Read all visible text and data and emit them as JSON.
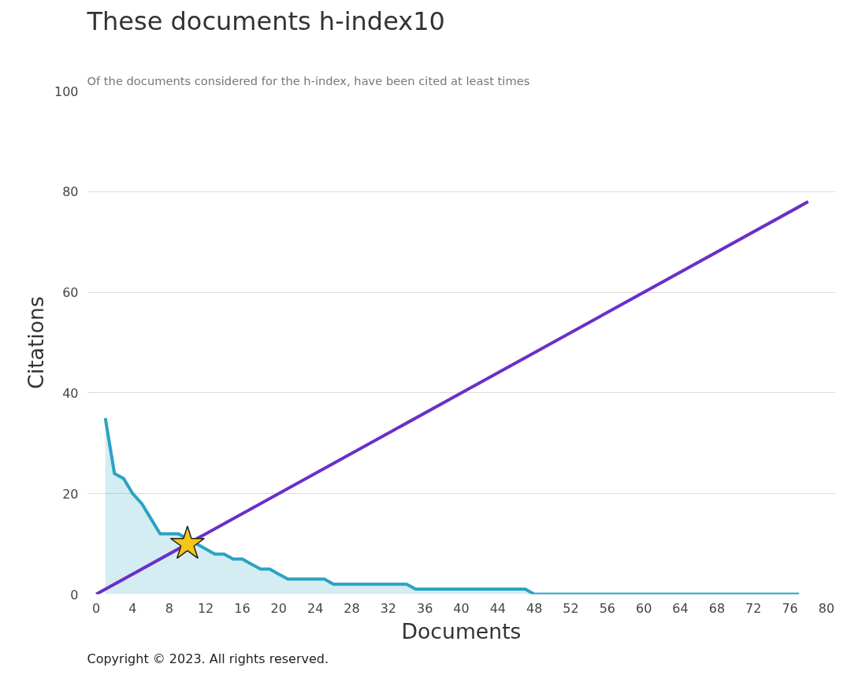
{
  "chart_data": {
    "type": "line",
    "title": "These documents h-index10",
    "subtitle": "Of the documents considered for the h-index, have been cited at least times",
    "xlabel": "Documents",
    "ylabel": "Citations",
    "annotations": [
      "Copyright © 2023. All rights reserved."
    ],
    "series": [
      {
        "type": "area",
        "color": "#2aa3c4",
        "x": [
          1,
          2,
          3,
          4,
          5,
          6,
          7,
          8,
          9,
          10,
          11,
          12,
          13,
          14,
          15,
          16,
          17,
          18,
          19,
          20,
          21,
          22,
          23,
          24,
          25,
          26,
          27,
          28,
          29,
          30,
          31,
          32,
          33,
          34,
          35,
          36,
          37,
          38,
          39,
          40,
          41,
          42,
          43,
          44,
          45,
          46,
          47,
          48,
          49,
          50,
          51,
          52,
          53,
          54,
          55,
          56,
          57,
          58,
          59,
          60,
          61,
          62,
          63,
          64,
          65,
          66,
          67,
          68,
          69,
          70,
          71,
          72,
          73,
          74,
          75,
          76,
          77
        ],
        "values": [
          35,
          24,
          23,
          20,
          18,
          15,
          12,
          12,
          12,
          11,
          10,
          9,
          8,
          8,
          7,
          7,
          6,
          5,
          5,
          4,
          3,
          3,
          3,
          3,
          3,
          2,
          2,
          2,
          2,
          2,
          2,
          2,
          2,
          2,
          1,
          1,
          1,
          1,
          1,
          1,
          1,
          1,
          1,
          1,
          1,
          1,
          1,
          0,
          0,
          0,
          0,
          0,
          0,
          0,
          0,
          0,
          0,
          0,
          0,
          0,
          0,
          0,
          0,
          0,
          0,
          0,
          0,
          0,
          0,
          0,
          0,
          0,
          0,
          0,
          0,
          0,
          0
        ]
      },
      {
        "color": "#6a2fc9",
        "x": [
          0,
          78
        ],
        "values": [
          0,
          78
        ]
      },
      {
        "type": "scatter",
        "color": "#f5c518",
        "marker": "star",
        "x": [
          10
        ],
        "values": [
          10
        ]
      }
    ],
    "xlim": [
      -1,
      81
    ],
    "ylim": [
      0,
      100
    ],
    "xticks": [
      0,
      4,
      8,
      12,
      16,
      20,
      24,
      28,
      32,
      36,
      40,
      44,
      48,
      52,
      56,
      60,
      64,
      68,
      72,
      76,
      80
    ],
    "yticks": [
      0,
      20,
      40,
      60,
      80,
      100
    ],
    "grid": "y"
  }
}
